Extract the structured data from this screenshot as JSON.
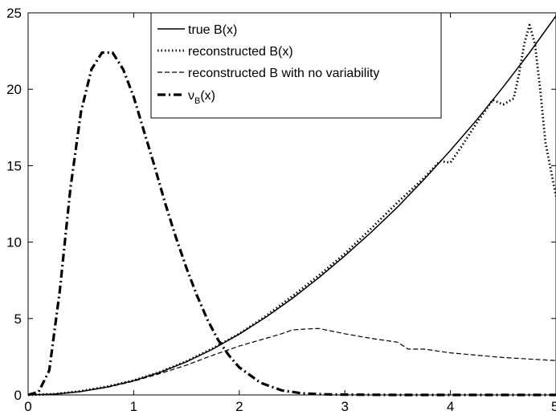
{
  "chart_data": {
    "type": "line",
    "title": "",
    "xlabel": "",
    "ylabel": "",
    "xlim": [
      0,
      5
    ],
    "ylim": [
      0,
      25
    ],
    "xticks": [
      "0",
      "1",
      "2",
      "3",
      "4",
      "5"
    ],
    "yticks": [
      "0",
      "5",
      "10",
      "15",
      "20",
      "25"
    ],
    "grid": false,
    "legend_position": "top-center",
    "series": [
      {
        "name": "true B(x)",
        "style": "solid",
        "x": [
          0,
          0.25,
          0.5,
          0.75,
          1,
          1.25,
          1.5,
          1.75,
          2,
          2.25,
          2.5,
          2.75,
          3,
          3.25,
          3.5,
          3.75,
          4,
          4.25,
          4.5,
          4.75,
          5
        ],
        "y": [
          0,
          0.05,
          0.22,
          0.52,
          0.93,
          1.48,
          2.17,
          3.0,
          3.98,
          5.08,
          6.3,
          7.65,
          9.1,
          10.65,
          12.3,
          14.1,
          16.0,
          18.0,
          20.15,
          22.4,
          24.8
        ]
      },
      {
        "name": "reconstructed B(x)",
        "style": "dotted",
        "x": [
          0,
          0.25,
          0.5,
          0.75,
          1,
          1.25,
          1.5,
          1.75,
          2,
          2.25,
          2.5,
          2.75,
          3,
          3.25,
          3.5,
          3.75,
          3.9,
          4.0,
          4.1,
          4.25,
          4.4,
          4.5,
          4.6,
          4.65,
          4.7,
          4.75,
          4.8,
          4.85,
          4.9,
          5.0
        ],
        "y": [
          0,
          0.06,
          0.25,
          0.55,
          0.95,
          1.5,
          2.2,
          3.05,
          4.0,
          5.15,
          6.45,
          7.8,
          9.25,
          10.9,
          12.6,
          14.2,
          15.3,
          15.2,
          16.2,
          17.8,
          19.3,
          19.0,
          19.4,
          21.0,
          23.0,
          24.2,
          23.0,
          20.0,
          16.5,
          13.0
        ]
      },
      {
        "name": "reconstructed B with no variability",
        "style": "dashed",
        "x": [
          0,
          0.25,
          0.5,
          0.75,
          1,
          1.25,
          1.5,
          1.75,
          2,
          2.25,
          2.4,
          2.5,
          2.6,
          2.75,
          3,
          3.25,
          3.5,
          3.6,
          3.75,
          4,
          4.25,
          4.5,
          4.75,
          5
        ],
        "y": [
          0,
          0.05,
          0.22,
          0.5,
          0.9,
          1.4,
          1.95,
          2.6,
          3.2,
          3.7,
          4.0,
          4.25,
          4.3,
          4.35,
          4.0,
          3.7,
          3.45,
          3.0,
          3.0,
          2.75,
          2.6,
          2.45,
          2.35,
          2.25
        ]
      },
      {
        "name": "ν_B(x)",
        "style": "dashdot",
        "x": [
          0,
          0.1,
          0.2,
          0.3,
          0.4,
          0.5,
          0.6,
          0.7,
          0.8,
          0.9,
          1.0,
          1.1,
          1.2,
          1.3,
          1.4,
          1.5,
          1.6,
          1.7,
          1.8,
          1.9,
          2.0,
          2.2,
          2.4,
          2.6,
          2.8,
          3.0,
          3.5,
          4.0,
          4.5,
          5.0
        ],
        "y": [
          0.0,
          0.2,
          1.6,
          6.8,
          13.5,
          18.5,
          21.3,
          22.4,
          22.4,
          21.3,
          19.5,
          17.2,
          14.9,
          12.5,
          10.3,
          8.3,
          6.5,
          4.9,
          3.6,
          2.6,
          1.8,
          0.8,
          0.3,
          0.1,
          0.04,
          0.02,
          0.0,
          0.0,
          0.0,
          0.0
        ]
      }
    ],
    "legend_entries": [
      {
        "text": "true B(x)",
        "style": "solid"
      },
      {
        "text": "reconstructed B(x)",
        "style": "dotted"
      },
      {
        "text": "reconstructed B with no variability",
        "style": "dashed"
      },
      {
        "text_main": "ν",
        "text_sub": "B",
        "text_tail": "(x)",
        "style": "dashdot"
      }
    ]
  }
}
